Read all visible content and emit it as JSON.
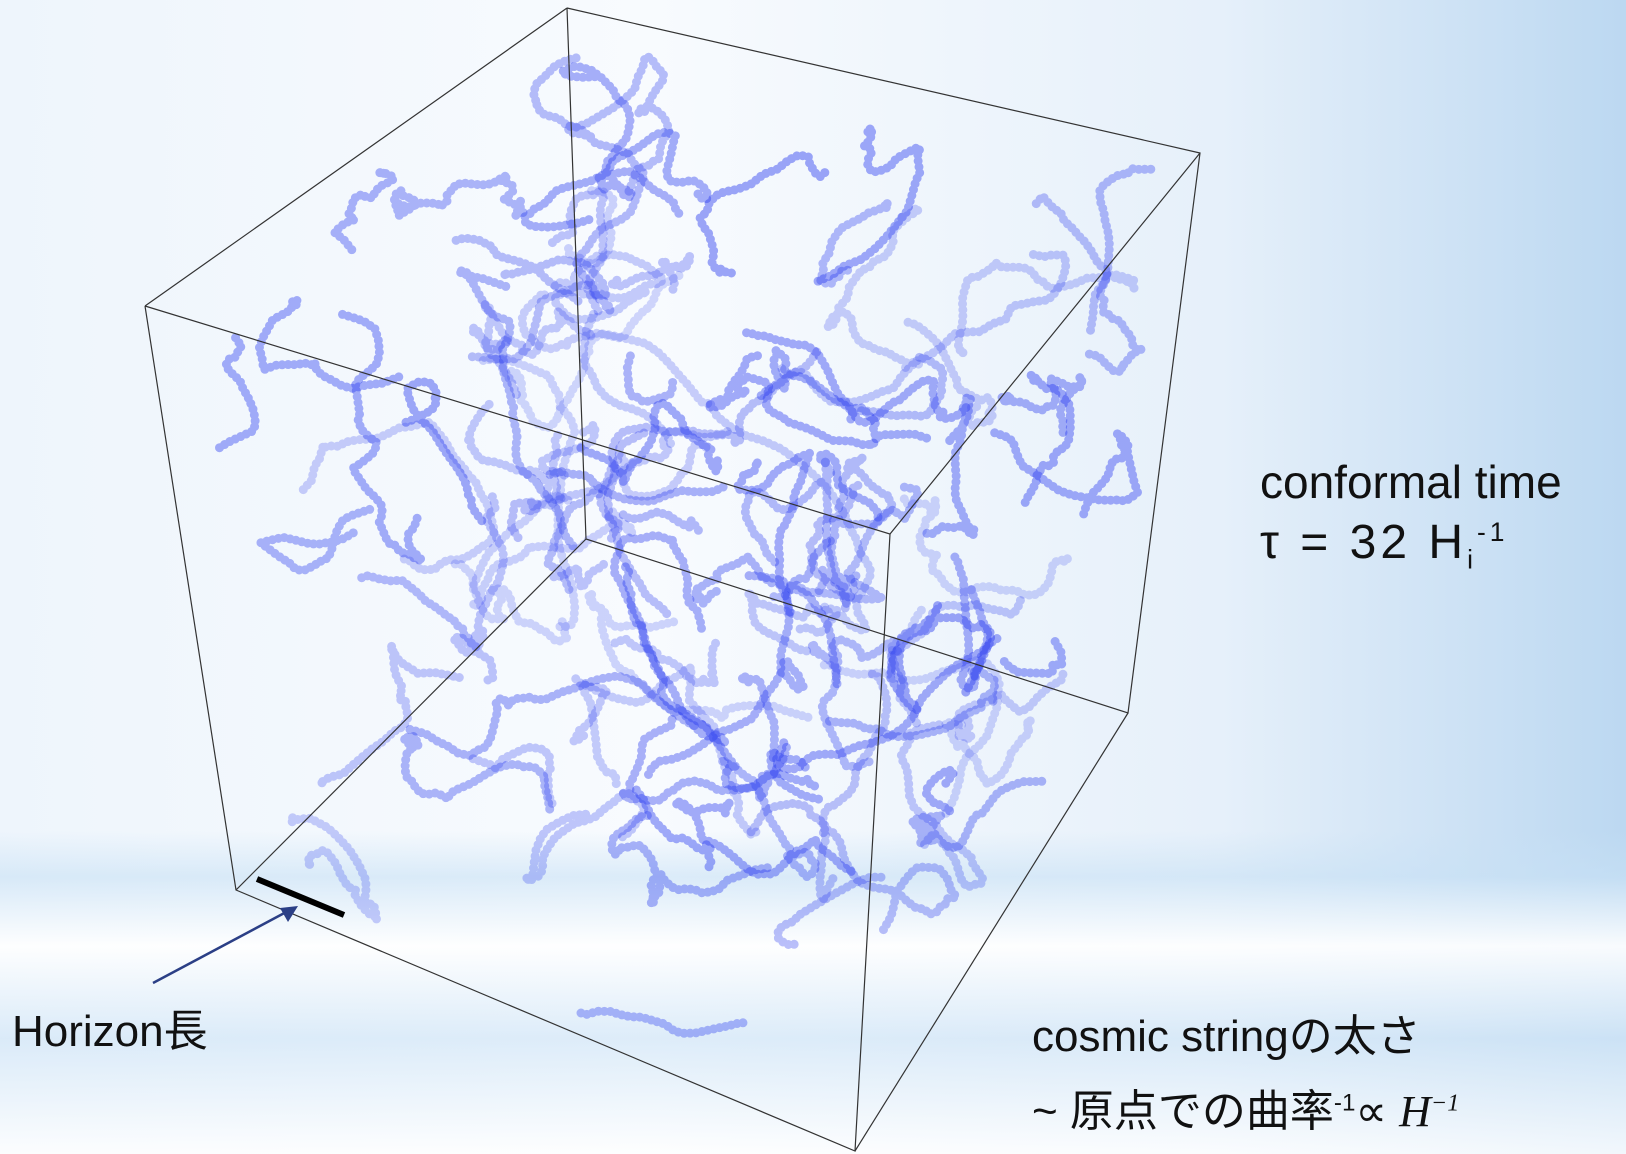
{
  "labels": {
    "time_title": "conformal time",
    "time_value": {
      "text": "τ = 32 H",
      "subscript": "i",
      "superscript": "-1"
    },
    "horizon": "Horizon長",
    "thickness": {
      "line1": "cosmic stringの太さ",
      "line2": {
        "text": "~ 原点での曲率",
        "superscript": "-1",
        "relation": "∝",
        "math": "H",
        "math_superscript": "−1"
      }
    }
  }
}
